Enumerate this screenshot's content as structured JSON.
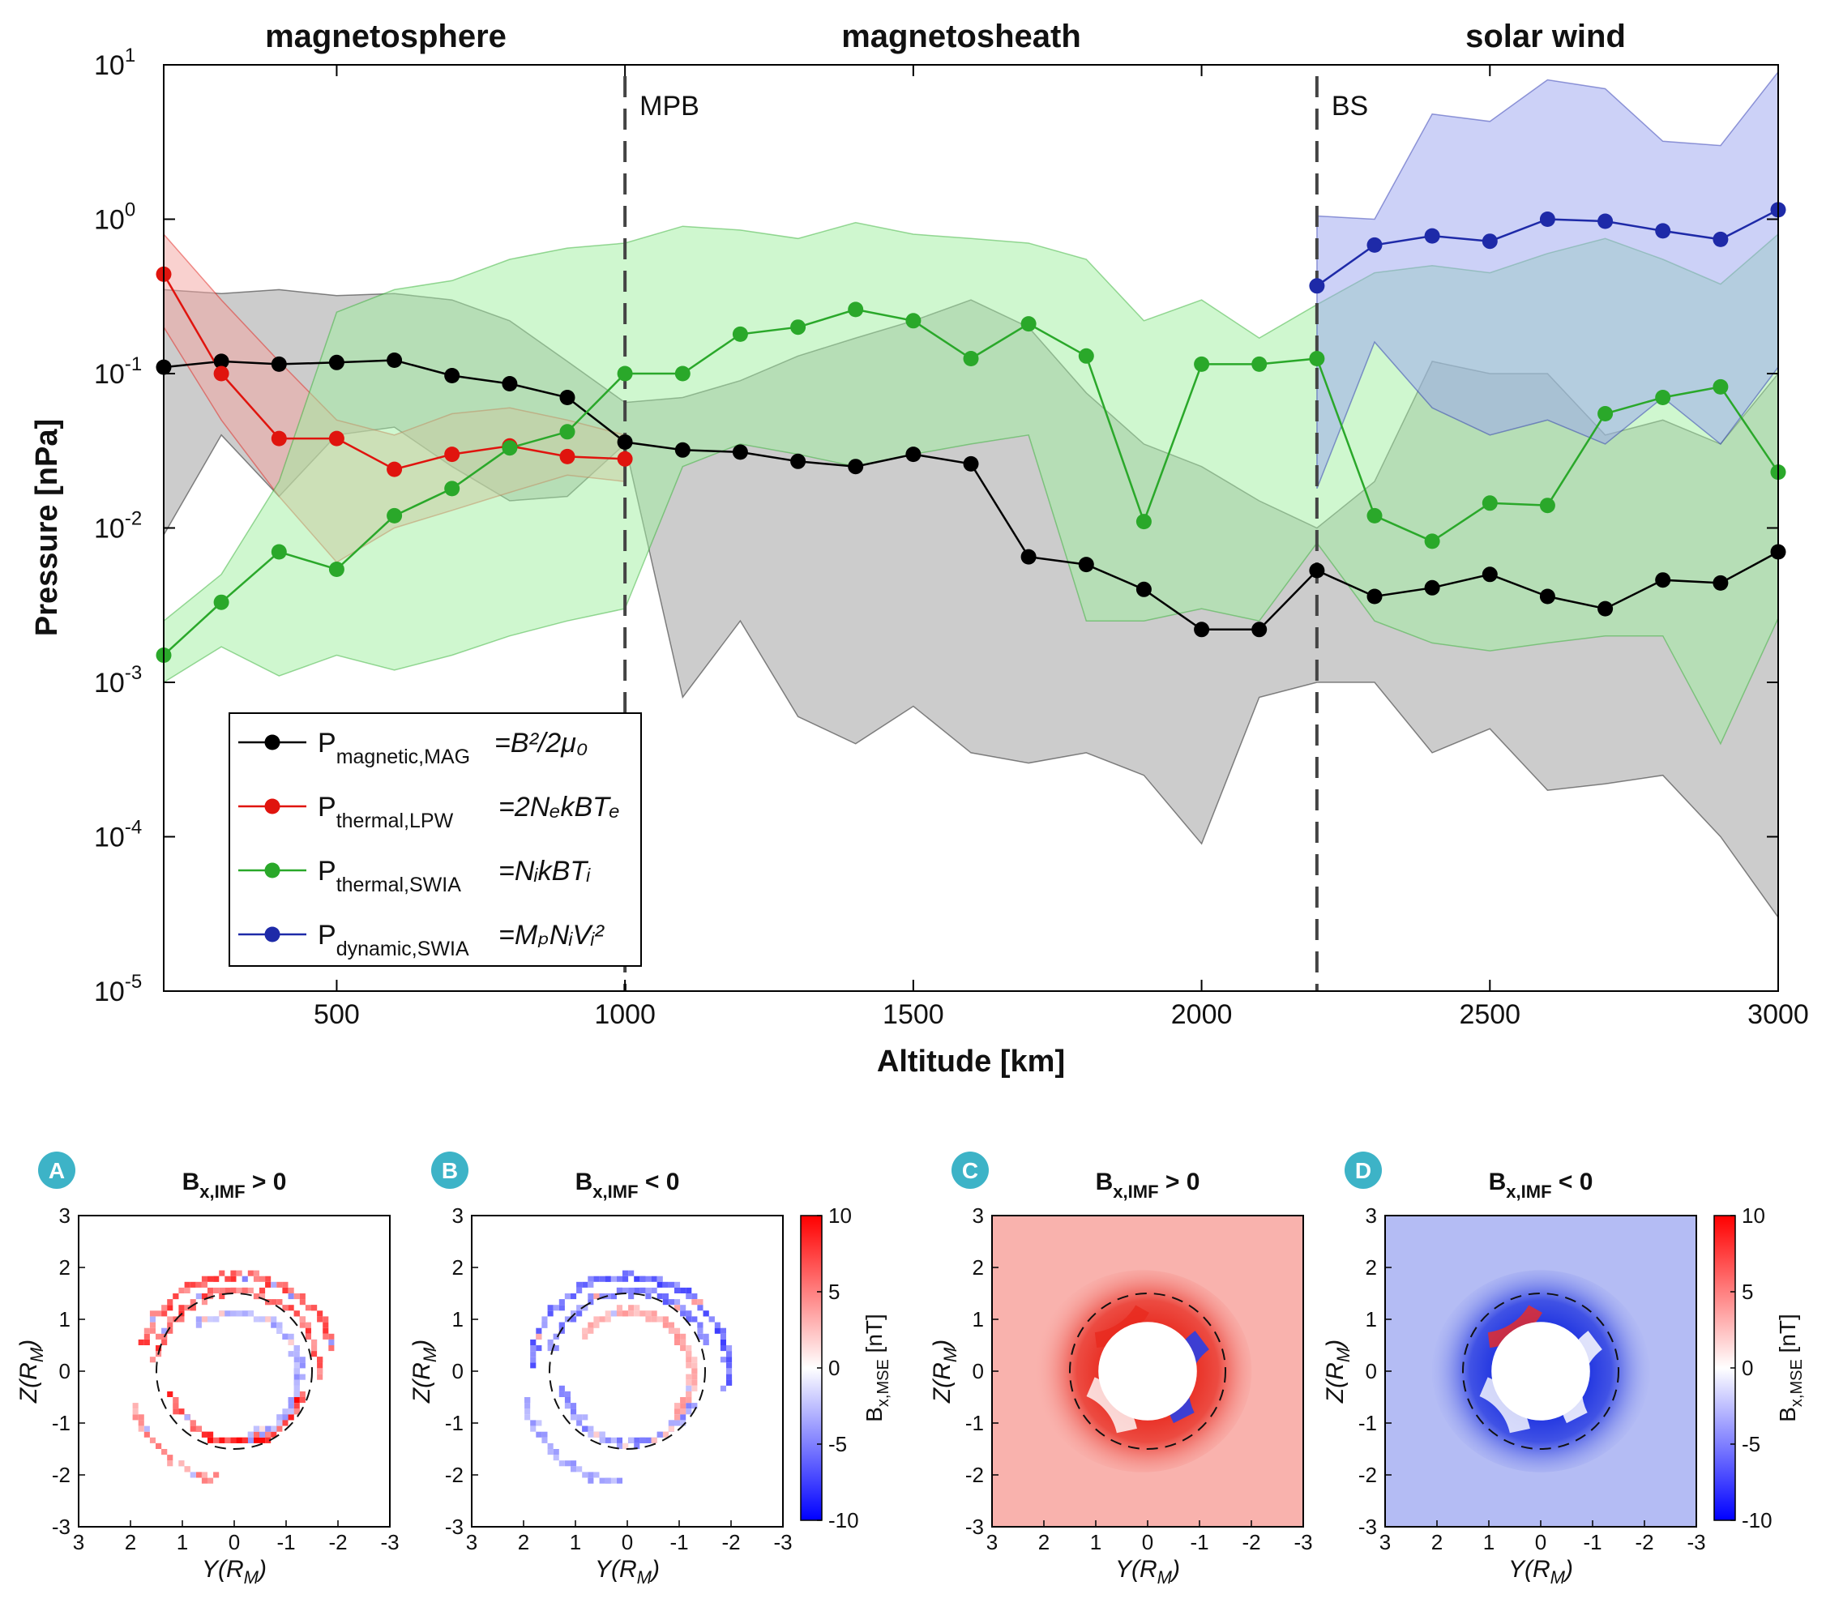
{
  "chart_data": [
    {
      "type": "line",
      "title": "",
      "xlabel": "Altitude [km]",
      "ylabel": "Pressure [nPa]",
      "yscale": "log",
      "xlim": [
        200,
        3000
      ],
      "ylim": [
        1e-05,
        10
      ],
      "x_ticks": [
        "500",
        "1000",
        "1500",
        "2000",
        "2500",
        "3000"
      ],
      "y_ticks": [
        {
          "base": "10",
          "exp": "1"
        },
        {
          "base": "10",
          "exp": "0"
        },
        {
          "base": "10",
          "exp": "-1"
        },
        {
          "base": "10",
          "exp": "-2"
        },
        {
          "base": "10",
          "exp": "-3"
        },
        {
          "base": "10",
          "exp": "-4"
        },
        {
          "base": "10",
          "exp": "-5"
        }
      ],
      "regions": [
        "magnetosphere",
        "magnetosheath",
        "solar wind"
      ],
      "boundaries": [
        {
          "name": "MPB",
          "x": 1000
        },
        {
          "name": "BS",
          "x": 2200
        }
      ],
      "series": [
        {
          "name": "P_magnetic,MAG",
          "legend_label": "P",
          "legend_sub": "magnetic,MAG",
          "legend_formula": "=B²/2μ₀",
          "color": "#000000",
          "band_color": "#9a9a9a",
          "x": [
            200,
            300,
            400,
            500,
            600,
            700,
            800,
            900,
            1000,
            1100,
            1200,
            1300,
            1400,
            1500,
            1600,
            1700,
            1800,
            1900,
            2000,
            2100,
            2200,
            2300,
            2400,
            2500,
            2600,
            2700,
            2800,
            2900,
            3000
          ],
          "y": [
            0.11,
            0.12,
            0.115,
            0.118,
            0.122,
            0.097,
            0.086,
            0.07,
            0.036,
            0.032,
            0.031,
            0.027,
            0.025,
            0.03,
            0.026,
            0.0065,
            0.0058,
            0.004,
            0.0022,
            0.0022,
            0.0053,
            0.0036,
            0.0041,
            0.005,
            0.0036,
            0.003,
            0.0046,
            0.0044,
            0.007
          ],
          "upper": [
            0.35,
            0.33,
            0.35,
            0.32,
            0.33,
            0.3,
            0.22,
            0.12,
            0.065,
            0.07,
            0.09,
            0.13,
            0.17,
            0.22,
            0.3,
            0.2,
            0.075,
            0.035,
            0.025,
            0.015,
            0.01,
            0.02,
            0.12,
            0.1,
            0.1,
            0.04,
            0.05,
            0.035,
            0.1
          ],
          "lower": [
            0.009,
            0.04,
            0.016,
            0.04,
            0.045,
            0.025,
            0.015,
            0.016,
            0.035,
            0.0008,
            0.0025,
            0.0006,
            0.0004,
            0.0007,
            0.00035,
            0.0003,
            0.00035,
            0.00025,
            9e-05,
            0.0008,
            0.001,
            0.001,
            0.00035,
            0.0005,
            0.0002,
            0.00022,
            0.00025,
            0.0001,
            3e-05
          ]
        },
        {
          "name": "P_thermal,LPW",
          "legend_label": "P",
          "legend_sub": "thermal,LPW",
          "legend_formula": "=2NₑkBTₑ",
          "color": "#e0140e",
          "band_color": "#f4a3a0",
          "x": [
            200,
            300,
            400,
            500,
            600,
            700,
            800,
            900,
            1000
          ],
          "y": [
            0.44,
            0.1,
            0.038,
            0.038,
            0.024,
            0.03,
            0.034,
            0.029,
            0.028
          ],
          "upper": [
            0.8,
            0.3,
            0.12,
            0.05,
            0.04,
            0.055,
            0.06,
            0.05,
            0.04
          ],
          "lower": [
            0.2,
            0.05,
            0.016,
            0.006,
            0.01,
            0.013,
            0.017,
            0.022,
            0.02
          ]
        },
        {
          "name": "P_thermal,SWIA",
          "legend_label": "P",
          "legend_sub": "thermal,SWIA",
          "legend_formula": "=NᵢkBTᵢ",
          "color": "#2aa82a",
          "band_color": "#9ff09f",
          "x": [
            200,
            300,
            400,
            500,
            600,
            700,
            800,
            900,
            1000,
            1100,
            1200,
            1300,
            1400,
            1500,
            1600,
            1700,
            1800,
            1900,
            2000,
            2100,
            2200,
            2300,
            2400,
            2500,
            2600,
            2700,
            2800,
            2900,
            3000
          ],
          "y": [
            0.0015,
            0.0033,
            0.007,
            0.0054,
            0.012,
            0.018,
            0.033,
            0.042,
            0.1,
            0.1,
            0.18,
            0.2,
            0.26,
            0.22,
            0.125,
            0.21,
            0.13,
            0.011,
            0.115,
            0.115,
            0.125,
            0.012,
            0.0082,
            0.0145,
            0.014,
            0.055,
            0.07,
            0.082,
            0.023
          ],
          "upper": [
            0.0025,
            0.005,
            0.02,
            0.25,
            0.35,
            0.4,
            0.55,
            0.65,
            0.7,
            0.9,
            0.85,
            0.75,
            0.95,
            0.8,
            0.75,
            0.7,
            0.55,
            0.22,
            0.3,
            0.17,
            0.28,
            0.45,
            0.5,
            0.45,
            0.6,
            0.75,
            0.55,
            0.38,
            0.8
          ],
          "lower": [
            0.001,
            0.0017,
            0.0011,
            0.0015,
            0.0012,
            0.0015,
            0.002,
            0.0025,
            0.003,
            0.025,
            0.035,
            0.03,
            0.025,
            0.03,
            0.035,
            0.04,
            0.0025,
            0.0025,
            0.003,
            0.0025,
            0.008,
            0.0025,
            0.0018,
            0.0016,
            0.0018,
            0.002,
            0.002,
            0.0004,
            0.0026
          ]
        },
        {
          "name": "P_dynamic,SWIA",
          "legend_label": "P",
          "legend_sub": "dynamic,SWIA",
          "legend_formula": "=MₚNᵢVᵢ²",
          "color": "#1e2aa8",
          "band_color": "#9aa4f0",
          "x": [
            2200,
            2300,
            2400,
            2500,
            2600,
            2700,
            2800,
            2900,
            3000
          ],
          "y": [
            0.37,
            0.68,
            0.78,
            0.72,
            1.0,
            0.97,
            0.84,
            0.74,
            1.15
          ],
          "upper": [
            1.05,
            1.0,
            4.8,
            4.3,
            8.0,
            7.0,
            3.2,
            3.0,
            9.0
          ],
          "lower": [
            0.018,
            0.16,
            0.06,
            0.04,
            0.05,
            0.035,
            0.07,
            0.035,
            0.11
          ]
        }
      ]
    },
    {
      "type": "heatmap",
      "panels": [
        {
          "badge": "A",
          "title_main": "B",
          "title_sub": "x,IMF",
          "title_rel": " > 0",
          "sign": 1,
          "style": "scatter"
        },
        {
          "badge": "B",
          "title_main": "B",
          "title_sub": "x,IMF",
          "title_rel": " < 0",
          "sign": -1,
          "style": "scatter"
        },
        {
          "badge": "C",
          "title_main": "B",
          "title_sub": "x,IMF",
          "title_rel": " > 0",
          "sign": 1,
          "style": "smooth"
        },
        {
          "badge": "D",
          "title_main": "B",
          "title_sub": "x,IMF",
          "title_rel": " < 0",
          "sign": -1,
          "style": "smooth"
        }
      ],
      "xlabel": "Y(R",
      "xlabel_sub": "M",
      "xlabel_end": ")",
      "ylabel": "Z(R",
      "ylabel_sub": "M",
      "ylabel_end": ")",
      "x_ticks": [
        "3",
        "2",
        "1",
        "0",
        "-1",
        "-2",
        "-3"
      ],
      "y_ticks": [
        "3",
        "2",
        "1",
        "0",
        "-1",
        "-2",
        "-3"
      ],
      "xlim": [
        3,
        -3
      ],
      "ylim": [
        -3,
        3
      ],
      "colorbar": {
        "label": "B",
        "label_sub": "x,MSE",
        "label_unit": " [nT]",
        "range": [
          -10,
          10
        ],
        "ticks": [
          "10",
          "5",
          "0",
          "-5",
          "-10"
        ],
        "colors": [
          "#0000ff",
          "#ffffff",
          "#ff0000"
        ]
      }
    }
  ]
}
